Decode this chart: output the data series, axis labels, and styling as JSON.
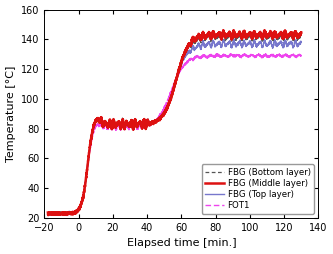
{
  "title": "",
  "xlabel": "Elapsed time [min.]",
  "ylabel": "Temperature [°C]",
  "xlim": [
    -20,
    140
  ],
  "ylim": [
    20,
    160
  ],
  "xticks": [
    -20,
    0,
    20,
    40,
    60,
    80,
    100,
    120,
    140
  ],
  "yticks": [
    20,
    40,
    60,
    80,
    100,
    120,
    140,
    160
  ],
  "legend": [
    {
      "label": "FBG (Bottom layer)",
      "color": "#555555",
      "linestyle": "dashed",
      "linewidth": 0.9
    },
    {
      "label": "FBG (Middle layer)",
      "color": "#dd1111",
      "linestyle": "solid",
      "linewidth": 1.8
    },
    {
      "label": "FBG (Top layer)",
      "color": "#7777cc",
      "linestyle": "solid",
      "linewidth": 1.0
    },
    {
      "label": "FOT1",
      "color": "#ee44ee",
      "linestyle": "dashed",
      "linewidth": 1.0
    }
  ],
  "background_color": "#ffffff",
  "tick_fontsize": 7,
  "label_fontsize": 8,
  "legend_fontsize": 6.2
}
